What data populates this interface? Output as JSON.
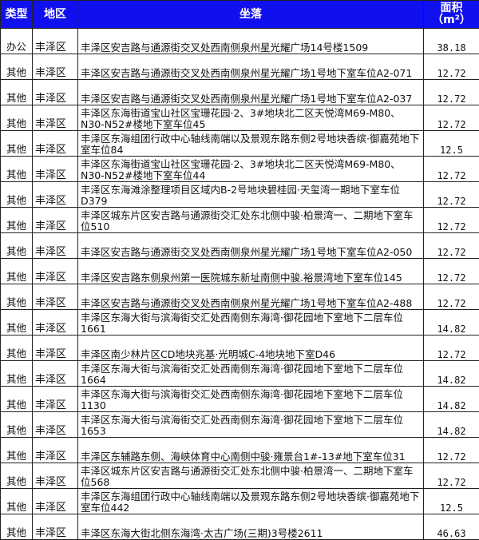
{
  "header": {
    "type": "类型",
    "district": "地区",
    "location": "坐落",
    "area": "面积（m²）"
  },
  "colors": {
    "header_bg": "#1010ee",
    "header_text": "#ffffff"
  },
  "rows": [
    {
      "type": "办公",
      "district": "丰泽区",
      "location": "丰泽区安吉路与通源街交叉处西南侧泉州星光耀广场14号楼1509",
      "area": "38.18"
    },
    {
      "type": "其他",
      "district": "丰泽区",
      "location": "丰泽区安吉路与通源街交叉处西南侧泉州星光耀广场1号地下室车位A2-071",
      "area": "12.72"
    },
    {
      "type": "其他",
      "district": "丰泽区",
      "location": "丰泽区安吉路与通源街交叉处西南侧泉州星光耀广场1号地下室车位A2-037",
      "area": "12.72"
    },
    {
      "type": "其他",
      "district": "丰泽区",
      "location": "丰泽区东海街道宝山社区宝珊花园·2、3#地块北二区天悦湾M69-M80、N30-N52#楼地下室车位45",
      "area": "12.72"
    },
    {
      "type": "其他",
      "district": "丰泽区",
      "location": "丰泽区东海组团行政中心轴线南端以及景观东路东侧2号地块香缤·御嘉苑地下室车位84",
      "area": "12.5"
    },
    {
      "type": "其他",
      "district": "丰泽区",
      "location": "丰泽区东海街道宝山社区宝珊花园·2、3#地块北二区天悦湾M69-M80、N30-N52#楼地下室车位44",
      "area": "12.72"
    },
    {
      "type": "其他",
      "district": "丰泽区",
      "location": "丰泽区东海滩涂整理项目区域内B-2号地块碧桂园·天玺湾一期地下室车位D379",
      "area": "12.72"
    },
    {
      "type": "其他",
      "district": "丰泽区",
      "location": "丰泽区城东片区安吉路与通源街交汇处东北侧中骏·柏景湾一、二期地下室车位510",
      "area": "12.72"
    },
    {
      "type": "其他",
      "district": "丰泽区",
      "location": "丰泽区安吉路与通源街交叉处西南侧泉州星光耀广场1号地下室车位A2-050",
      "area": "12.72"
    },
    {
      "type": "其他",
      "district": "丰泽区",
      "location": "丰泽区安吉路东侧泉州第一医院城东新址南侧中骏.裕景湾地下室车位145",
      "area": "12.72"
    },
    {
      "type": "其他",
      "district": "丰泽区",
      "location": "丰泽区安吉路与通源街交叉处西南侧泉州星光耀广场1号地下室车位A2-488",
      "area": "12.72"
    },
    {
      "type": "其他",
      "district": "丰泽区",
      "location": "丰泽区东海大街与滨海街交汇处西南侧东海湾·御花园地下室地下二层车位1661",
      "area": "14.82"
    },
    {
      "type": "其他",
      "district": "丰泽区",
      "location": "丰泽区南少林片区CD地块兆基·光明城C-4地块地下室D46",
      "area": "12.72"
    },
    {
      "type": "其他",
      "district": "丰泽区",
      "location": "丰泽区东海大街与滨海街交汇处西南侧东海湾·御花园地下室地下二层车位1664",
      "area": "14.82"
    },
    {
      "type": "其他",
      "district": "丰泽区",
      "location": "丰泽区东海大街与滨海街交汇处西南侧东海湾·御花园地下室地下二层车位1130",
      "area": "14.82"
    },
    {
      "type": "其他",
      "district": "丰泽区",
      "location": "丰泽区东海大街与滨海街交汇处西南侧东海湾·御花园地下室地下二层车位1653",
      "area": "14.82"
    },
    {
      "type": "其他",
      "district": "丰泽区",
      "location": "丰泽区东辅路东侧、海峡体育中心南侧中骏·雍景台1#-13#地下室车位31",
      "area": "12.72"
    },
    {
      "type": "其他",
      "district": "丰泽区",
      "location": "丰泽区城东片区安吉路与通源街交汇处东北侧中骏·柏景湾一、二期地下室车位568",
      "area": "12.72"
    },
    {
      "type": "其他",
      "district": "丰泽区",
      "location": "丰泽区东海组团行政中心轴线南端以及景观东路东侧2号地块香缤·御嘉苑地下室车位442",
      "area": "12.5"
    },
    {
      "type": "其他",
      "district": "丰泽区",
      "location": "丰泽区东海大街北侧东海湾·太古广场(三期)3号楼2611",
      "area": "46.63"
    }
  ]
}
